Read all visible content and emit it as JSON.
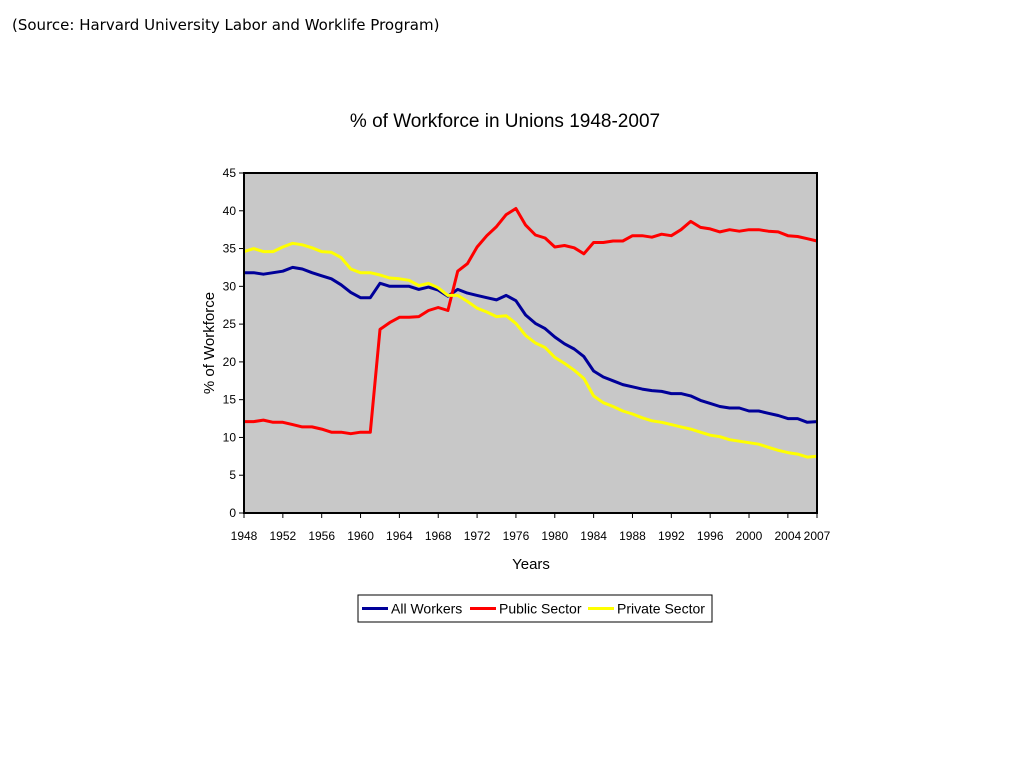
{
  "source_note": "(Source: Harvard University Labor and Worklife Program)",
  "chart_data": {
    "type": "line",
    "title": "% of Workforce in Unions 1948-2007",
    "xlabel": "Years",
    "ylabel": "% of Workforce",
    "xlim": [
      1948,
      2007
    ],
    "ylim": [
      0,
      45
    ],
    "yticks": [
      0,
      5,
      10,
      15,
      20,
      25,
      30,
      35,
      40,
      45
    ],
    "xticks": [
      1948,
      1952,
      1956,
      1960,
      1964,
      1968,
      1972,
      1976,
      1980,
      1984,
      1988,
      1992,
      1996,
      2000,
      2004,
      2007
    ],
    "plot_background": "#c8c8c8",
    "grid": false,
    "legend_position": "bottom",
    "series": [
      {
        "name": "All Workers",
        "color": "#000099",
        "x": [
          1948,
          1949,
          1950,
          1951,
          1952,
          1953,
          1954,
          1955,
          1956,
          1957,
          1958,
          1959,
          1960,
          1961,
          1962,
          1963,
          1964,
          1965,
          1966,
          1967,
          1968,
          1969,
          1970,
          1971,
          1972,
          1973,
          1974,
          1975,
          1976,
          1977,
          1978,
          1979,
          1980,
          1981,
          1982,
          1983,
          1984,
          1985,
          1986,
          1987,
          1988,
          1989,
          1990,
          1991,
          1992,
          1993,
          1994,
          1995,
          1996,
          1997,
          1998,
          1999,
          2000,
          2001,
          2002,
          2003,
          2004,
          2005,
          2006,
          2007
        ],
        "values": [
          31.8,
          31.8,
          31.6,
          31.8,
          32.0,
          32.5,
          32.3,
          31.8,
          31.4,
          31.0,
          30.2,
          29.2,
          28.5,
          28.5,
          30.4,
          30.0,
          30.0,
          30.0,
          29.6,
          29.9,
          29.5,
          28.7,
          29.6,
          29.1,
          28.8,
          28.5,
          28.2,
          28.8,
          28.1,
          26.2,
          25.1,
          24.4,
          23.3,
          22.4,
          21.7,
          20.7,
          18.8,
          18.0,
          17.5,
          17.0,
          16.7,
          16.4,
          16.2,
          16.1,
          15.8,
          15.8,
          15.5,
          14.9,
          14.5,
          14.1,
          13.9,
          13.9,
          13.5,
          13.5,
          13.2,
          12.9,
          12.5,
          12.5,
          12.0,
          12.1
        ]
      },
      {
        "name": "Public Sector",
        "color": "#ff0000",
        "x": [
          1948,
          1949,
          1950,
          1951,
          1952,
          1953,
          1954,
          1955,
          1956,
          1957,
          1958,
          1959,
          1960,
          1961,
          1962,
          1963,
          1964,
          1965,
          1966,
          1967,
          1968,
          1969,
          1970,
          1971,
          1972,
          1973,
          1974,
          1975,
          1976,
          1977,
          1978,
          1979,
          1980,
          1981,
          1982,
          1983,
          1984,
          1985,
          1986,
          1987,
          1988,
          1989,
          1990,
          1991,
          1992,
          1993,
          1994,
          1995,
          1996,
          1997,
          1998,
          1999,
          2000,
          2001,
          2002,
          2003,
          2004,
          2005,
          2006,
          2007
        ],
        "values": [
          12.1,
          12.1,
          12.3,
          12.0,
          12.0,
          11.7,
          11.4,
          11.4,
          11.1,
          10.7,
          10.7,
          10.5,
          10.7,
          10.7,
          24.3,
          25.2,
          25.9,
          25.9,
          26.0,
          26.8,
          27.2,
          26.8,
          32.0,
          33.0,
          35.2,
          36.7,
          37.9,
          39.5,
          40.3,
          38.1,
          36.8,
          36.4,
          35.2,
          35.4,
          35.1,
          34.3,
          35.8,
          35.8,
          36.0,
          36.0,
          36.7,
          36.7,
          36.5,
          36.9,
          36.7,
          37.5,
          38.6,
          37.8,
          37.6,
          37.2,
          37.5,
          37.3,
          37.5,
          37.5,
          37.3,
          37.2,
          36.7,
          36.6,
          36.3,
          36.0
        ]
      },
      {
        "name": "Private Sector",
        "color": "#ffff00",
        "x": [
          1948,
          1949,
          1950,
          1951,
          1952,
          1953,
          1954,
          1955,
          1956,
          1957,
          1958,
          1959,
          1960,
          1961,
          1962,
          1963,
          1964,
          1965,
          1966,
          1967,
          1968,
          1969,
          1970,
          1971,
          1972,
          1973,
          1974,
          1975,
          1976,
          1977,
          1978,
          1979,
          1980,
          1981,
          1982,
          1983,
          1984,
          1985,
          1986,
          1987,
          1988,
          1989,
          1990,
          1991,
          1992,
          1993,
          1994,
          1995,
          1996,
          1997,
          1998,
          1999,
          2000,
          2001,
          2002,
          2003,
          2004,
          2005,
          2006,
          2007
        ],
        "values": [
          34.6,
          35.0,
          34.6,
          34.6,
          35.2,
          35.7,
          35.5,
          35.1,
          34.6,
          34.5,
          33.8,
          32.3,
          31.8,
          31.8,
          31.5,
          31.1,
          31.0,
          30.8,
          30.1,
          30.4,
          29.8,
          28.8,
          28.8,
          28.0,
          27.1,
          26.6,
          26.0,
          26.1,
          25.1,
          23.5,
          22.5,
          21.9,
          20.6,
          19.8,
          18.9,
          17.8,
          15.5,
          14.6,
          14.1,
          13.5,
          13.1,
          12.6,
          12.2,
          12.0,
          11.7,
          11.4,
          11.1,
          10.7,
          10.3,
          10.1,
          9.7,
          9.5,
          9.3,
          9.1,
          8.7,
          8.3,
          8.0,
          7.8,
          7.4,
          7.5
        ]
      }
    ]
  }
}
